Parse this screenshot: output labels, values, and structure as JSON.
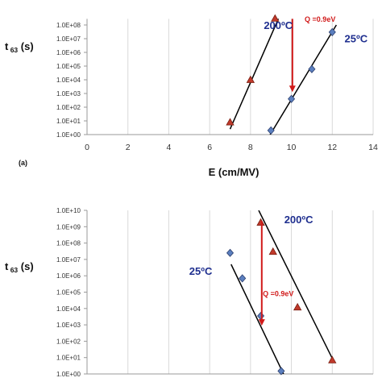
{
  "chart_data": [
    {
      "type": "scatter",
      "panel_label": "(a)",
      "ylabel_main": "t",
      "ylabel_sub": "63",
      "ylabel_unit": "(s)",
      "xlabel": "E  (cm/MV)",
      "x_ticks": [
        "0",
        "2",
        "4",
        "6",
        "8",
        "10",
        "12",
        "14"
      ],
      "y_ticks": [
        "1.0E+00",
        "1.0E+01",
        "1.0E+02",
        "1.0E+03",
        "1.0E+04",
        "1.0E+05",
        "1.0E+06",
        "1.0E+07",
        "1.0E+08"
      ],
      "xlim": [
        0,
        14
      ],
      "ylim_log10": [
        0,
        8.45
      ],
      "grid": "vertical",
      "series": [
        {
          "name": "200°C",
          "marker": "triangle",
          "color": "#c0392b",
          "x": [
            7,
            8,
            9.2
          ],
          "y": [
            8.0,
            10000,
            300000000
          ],
          "fit_x": [
            7.0,
            9.7
          ],
          "fit_y": [
            2.5,
            4000000000.0
          ]
        },
        {
          "name": "25°C",
          "marker": "diamond",
          "color": "#5b7fbf",
          "x": [
            9,
            10,
            11,
            12
          ],
          "y": [
            2.0,
            400,
            60000,
            30000000
          ],
          "fit_x": [
            8.9,
            12.2
          ],
          "fit_y": [
            0.7,
            100000000.0
          ]
        }
      ],
      "annotations": [
        {
          "text": "200ºC",
          "kind": "temp",
          "x": 8.65,
          "y_log10": 7.7
        },
        {
          "text": "25ºC",
          "kind": "temp",
          "x": 12.6,
          "y_log10": 6.75
        },
        {
          "text": "Q =0.9eV",
          "kind": "q",
          "x": 10.65,
          "y_log10": 8.25
        }
      ],
      "arrow": {
        "x": 10.05,
        "from_y_log10": 8.45,
        "to_y_log10": 3.1,
        "color": "#d11a1a"
      }
    },
    {
      "type": "scatter",
      "ylabel_main": "t",
      "ylabel_sub": "63",
      "ylabel_unit": "(s)",
      "y_ticks": [
        "1.0E+00",
        "1.0E+01",
        "1.0E+02",
        "1.0E+03",
        "1.0E+04",
        "1.0E+05",
        "1.0E+06",
        "1.0E+07",
        "1.0E+08",
        "1.0E+09",
        "1.0E+10"
      ],
      "xlim": [
        0,
        14
      ],
      "ylim_log10": [
        0,
        10
      ],
      "grid": "vertical",
      "series": [
        {
          "name": "25°C",
          "marker": "diamond",
          "color": "#5b7fbf",
          "x": [
            7,
            7.6,
            8.5,
            9.5
          ],
          "y": [
            25000000,
            700000,
            3500,
            1.5
          ],
          "fit_x": [
            7.05,
            9.7
          ],
          "fit_y": [
            5000000.0,
            0.6
          ]
        },
        {
          "name": "200°C",
          "marker": "triangle",
          "color": "#c0392b",
          "x": [
            8.5,
            9.1,
            10.3,
            12.0
          ],
          "y": [
            1800000000,
            30000000,
            12000,
            7
          ],
          "fit_x": [
            8.4,
            12.1
          ],
          "fit_y": [
            10000000000.0,
            5.0
          ]
        }
      ],
      "annotations": [
        {
          "text": "200ºC",
          "kind": "temp",
          "x": 9.65,
          "y_log10": 9.2
        },
        {
          "text": "25ºC",
          "kind": "temp",
          "x": 5.0,
          "y_log10": 6.05
        },
        {
          "text": "Q =0.9eV",
          "kind": "q",
          "x": 8.6,
          "y_log10": 4.75
        }
      ],
      "arrow": {
        "x": 8.55,
        "from_y_log10": 9.35,
        "to_y_log10": 2.95,
        "color": "#d11a1a"
      }
    }
  ]
}
